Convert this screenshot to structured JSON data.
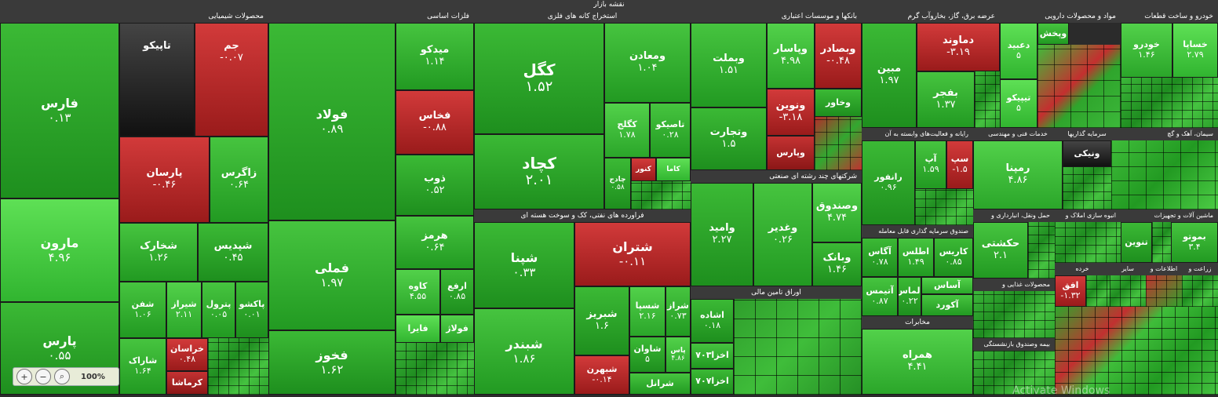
{
  "title": "نقشه بازار",
  "sectors": {
    "chemical": "محصولات شیمیایی",
    "metals": "فلزات اساسی",
    "mining": "استخراج کانه های فلزی",
    "banks": "بانکها و موسسات اعتباری",
    "utility": "عرضه برق، گاز، بخاروآب گرم",
    "pharma": "مواد و محصولات دارویی",
    "auto": "خودرو و ساخت قطعات",
    "refinery": "فراورده های نفتی، کک و سوخت هسته ای",
    "multi": "شرکتهای چند رشته ای صنعتی",
    "funds": "صندوق سرمایه گذاری قابل معامله",
    "bonds": "اوراق تامین مالی",
    "telecom": "مخابرات",
    "computer": "رایانه و فعالیت‌های وابسته به آن",
    "engineering": "خدمات فنی و مهندسی",
    "invest": "سرمایه گذاریها",
    "cement": "سیمان، آهک و گچ",
    "food": "محصولات غذایی و",
    "machinery": "ماشین آلات و تجهیزات",
    "realestate": "انبوه سازی املاک و",
    "transport": "حمل ونقل، انبارداری و",
    "agri": "زراعت و",
    "retail": "خرده",
    "info": "اطلاعات و",
    "bank2": "بیمه وصندوق بازنشستگی",
    "other": "سایر"
  },
  "tiles": {
    "fars": {
      "name": "فارس",
      "value": "۰.۱۳"
    },
    "tapiko": {
      "name": "تاپیکو",
      "value": ""
    },
    "jam": {
      "name": "جم",
      "value": "-۰.۰۷"
    },
    "maroon": {
      "name": "مارون",
      "value": "۴.۹۶"
    },
    "parsan": {
      "name": "پارسان",
      "value": "-۰.۴۶"
    },
    "zagros": {
      "name": "زاگرس",
      "value": "۰.۶۴"
    },
    "shakhark": {
      "name": "شخارک",
      "value": "۱.۲۶"
    },
    "shepdis": {
      "name": "شپدیس",
      "value": "۰.۴۵"
    },
    "pars": {
      "name": "پارس",
      "value": "۰.۵۵"
    },
    "shafan": {
      "name": "شفن",
      "value": "۱.۰۶"
    },
    "shiraz": {
      "name": "شیراز",
      "value": "۲.۱۱"
    },
    "petrol": {
      "name": "پترول",
      "value": "۰.۰۵"
    },
    "pakshou": {
      "name": "پاکشو",
      "value": "۰.۰۱"
    },
    "sharak": {
      "name": "شاراک",
      "value": "۱.۶۴"
    },
    "khorasan": {
      "name": "خراسان",
      "value": "۰.۴۸"
    },
    "kermasha": {
      "name": "کرماشا",
      "value": ""
    },
    "foolad": {
      "name": "فولاد",
      "value": "۰.۸۹"
    },
    "fameli": {
      "name": "فملی",
      "value": "۱.۹۷"
    },
    "fakhooz": {
      "name": "فخوز",
      "value": "۱.۶۲"
    },
    "meydko": {
      "name": "میدکو",
      "value": "۱.۱۴"
    },
    "fakhas": {
      "name": "فخاس",
      "value": "-۰.۸۸"
    },
    "zob": {
      "name": "ذوب",
      "value": "۰.۵۲"
    },
    "hormoz": {
      "name": "هرمز",
      "value": "۰.۶۴"
    },
    "kaveh": {
      "name": "کاوه",
      "value": "۴.۵۵"
    },
    "arfa": {
      "name": "ارفع",
      "value": "۰.۸۵"
    },
    "faira": {
      "name": "فایرا",
      "value": ""
    },
    "foolaj": {
      "name": "فولاژ",
      "value": ""
    },
    "kegol": {
      "name": "کگل",
      "value": "۱.۵۲"
    },
    "vamaaden": {
      "name": "ومعادن",
      "value": "۱.۰۴"
    },
    "kechad": {
      "name": "کچاد",
      "value": "۲.۰۱"
    },
    "kegolj": {
      "name": "کگلج",
      "value": "۱.۷۸"
    },
    "tasiko": {
      "name": "تاصیکو",
      "value": "۰.۲۸"
    },
    "kenor": {
      "name": "کنور",
      "value": ""
    },
    "chadej": {
      "name": "چادج",
      "value": "۰.۵۸"
    },
    "kama": {
      "name": "کاما",
      "value": ""
    },
    "shapna": {
      "name": "شپنا",
      "value": "۰.۳۳"
    },
    "shatran": {
      "name": "شتران",
      "value": "-۰.۱۱"
    },
    "shabandar": {
      "name": "شبندر",
      "value": "۱.۸۶"
    },
    "shabriz": {
      "name": "شبریز",
      "value": "۱.۶"
    },
    "shaspa": {
      "name": "شسپا",
      "value": "۲.۱۶"
    },
    "sherag": {
      "name": "شراز",
      "value": "۰.۷۳"
    },
    "shavan": {
      "name": "شاوان",
      "value": "۵"
    },
    "shabhran": {
      "name": "شبهرن",
      "value": "-۰.۱۴"
    },
    "pas": {
      "name": "پاس",
      "value": "۴.۸۶"
    },
    "sheranal": {
      "name": "شرانل",
      "value": ""
    },
    "vabmellat": {
      "name": "وبملت",
      "value": "۱.۵۱"
    },
    "vapasar": {
      "name": "وپاسار",
      "value": "۴.۹۸"
    },
    "vabsader": {
      "name": "وبصادر",
      "value": "-۰.۴۸"
    },
    "vatejarat": {
      "name": "وتجارت",
      "value": "۱.۵"
    },
    "vanovin": {
      "name": "ونوین",
      "value": "-۳.۱۸"
    },
    "vakhavar": {
      "name": "وخاور",
      "value": ""
    },
    "vaparas": {
      "name": "وپارس",
      "value": ""
    },
    "vamid": {
      "name": "وامید",
      "value": "۲.۲۷"
    },
    "vaghadir": {
      "name": "وغدیر",
      "value": "۰.۲۶"
    },
    "vasandooq": {
      "name": "وصندوق",
      "value": "۴.۷۴"
    },
    "vabank": {
      "name": "وبانک",
      "value": "۱.۴۶"
    },
    "mobin": {
      "name": "مبین",
      "value": "۱.۹۷"
    },
    "damavand": {
      "name": "دماوند",
      "value": "-۳.۱۹"
    },
    "bafjar": {
      "name": "بفجر",
      "value": "۱.۳۷"
    },
    "debid": {
      "name": "دعبید",
      "value": "۵"
    },
    "vipakhsh": {
      "name": "وپخش",
      "value": ""
    },
    "tipiko": {
      "name": "تیپیکو",
      "value": "۵"
    },
    "khodro": {
      "name": "خودرو",
      "value": "۱.۴۶"
    },
    "khasapa": {
      "name": "خساپا",
      "value": "۲.۷۹"
    },
    "ranfor": {
      "name": "رانفور",
      "value": "۰.۹۶"
    },
    "aap": {
      "name": "آپ",
      "value": "۱.۵۹"
    },
    "sap": {
      "name": "سپ",
      "value": "-۱.۵"
    },
    "rampena": {
      "name": "رمپنا",
      "value": "۴.۸۶"
    },
    "vanaki": {
      "name": "ونیکی",
      "value": ""
    },
    "hakashti": {
      "name": "حکشتی",
      "value": "۲.۱"
    },
    "agas": {
      "name": "آگاس",
      "value": "۰.۷۸"
    },
    "atlas": {
      "name": "اطلس",
      "value": "۱.۴۹"
    },
    "karis": {
      "name": "کاریس",
      "value": "۰.۸۵"
    },
    "atimas": {
      "name": "آتیمس",
      "value": "۰.۸۷"
    },
    "almas": {
      "name": "الماس",
      "value": "۰.۲۲"
    },
    "asas": {
      "name": "آساس",
      "value": ""
    },
    "akord": {
      "name": "آکورد",
      "value": ""
    },
    "hamrah": {
      "name": "همراه",
      "value": "۴.۴۱"
    },
    "eshade": {
      "name": "اشاده",
      "value": "۰.۱۸"
    },
    "akhza703": {
      "name": "اخزا۷۰۳",
      "value": ""
    },
    "akhza707": {
      "name": "اخزا۷۰۷",
      "value": ""
    },
    "afgh": {
      "name": "افق",
      "value": "-۱.۳۲"
    },
    "sizdabar": {
      "name": "ستران",
      "value": ""
    },
    "ssafarons": {
      "name": "سفارس",
      "value": ""
    },
    "beshovo": {
      "name": "بموتو",
      "value": "۳.۴"
    },
    "tenvin": {
      "name": "تنوین",
      "value": ""
    }
  },
  "zoom": {
    "level": "100%",
    "zoom_in": "+",
    "zoom_out": "−",
    "reset": "⌕"
  },
  "watermark": "Activate Windows"
}
